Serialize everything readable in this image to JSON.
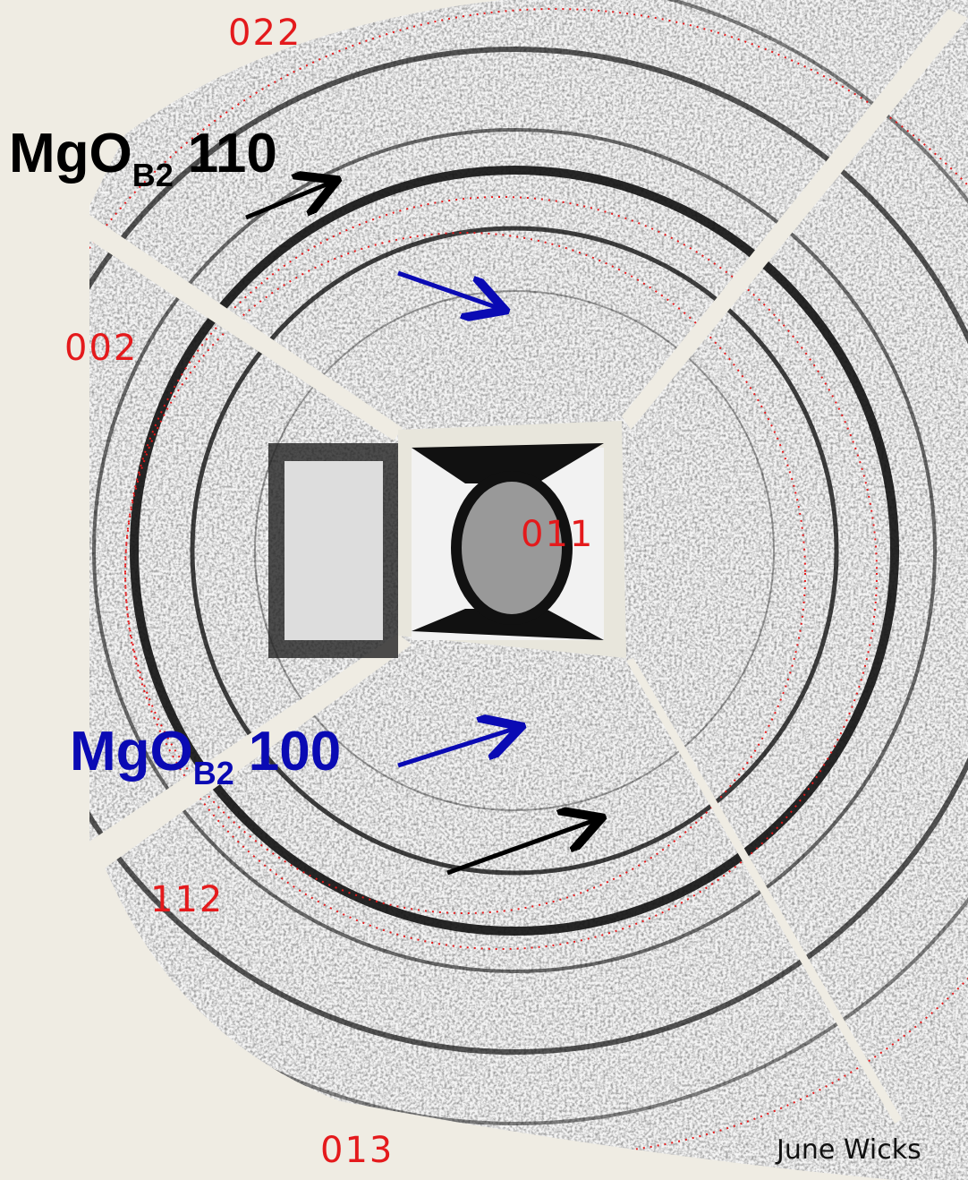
{
  "ring_labels": [
    "022",
    "002",
    "011",
    "112",
    "013"
  ],
  "annotations": [
    {
      "main": "MgO",
      "sub": "B2",
      "index": "110"
    },
    {
      "main": "MgO",
      "sub": "B2",
      "index": "100"
    }
  ],
  "credit": "June Wicks"
}
